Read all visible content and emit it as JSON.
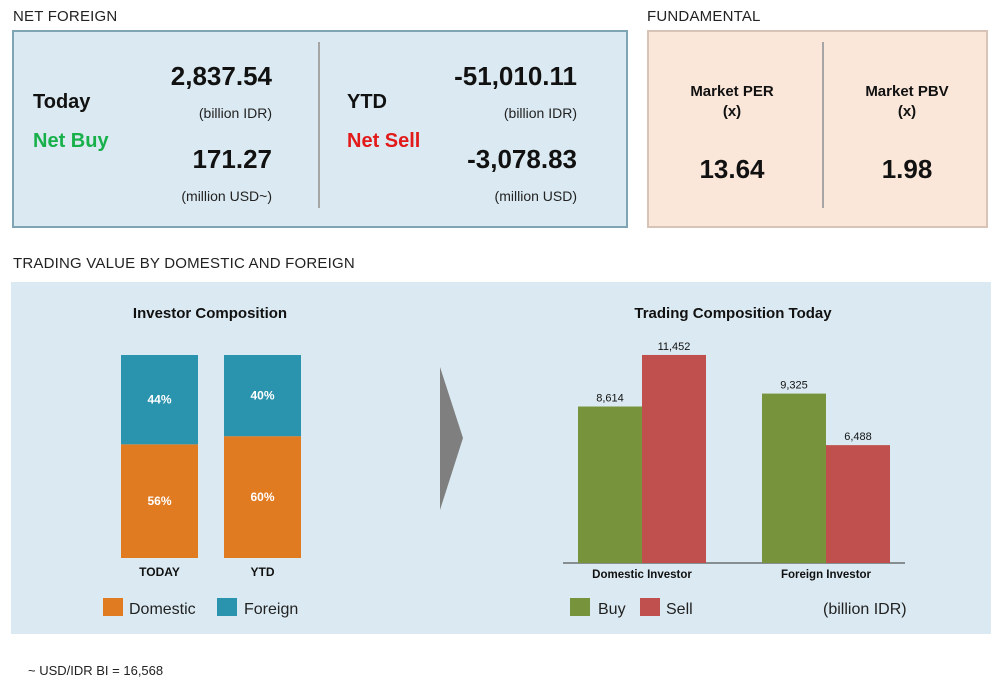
{
  "net_foreign": {
    "section_title": "NET FOREIGN",
    "today": {
      "label": "Today",
      "status": "Net Buy",
      "idr_value": "2,837.54",
      "idr_unit": "(billion IDR)",
      "usd_value": "171.27",
      "usd_unit": "(million USD~)"
    },
    "ytd": {
      "label": "YTD",
      "status": "Net Sell",
      "idr_value": "-51,010.11",
      "idr_unit": "(billion IDR)",
      "usd_value": "-3,078.83",
      "usd_unit": "(million USD)"
    },
    "colors": {
      "net_buy": "#18b04a",
      "net_sell": "#e21a1a",
      "panel_bg": "#dbeaf2"
    }
  },
  "fundamental": {
    "section_title": "FUNDAMENTAL",
    "per": {
      "label": "Market PER",
      "unit": "(x)",
      "value": "13.64"
    },
    "pbv": {
      "label": "Market PBV",
      "unit": "(x)",
      "value": "1.98"
    },
    "colors": {
      "panel_bg": "#fbe7d9"
    }
  },
  "trading_value": {
    "section_title": "TRADING VALUE BY DOMESTIC AND FOREIGN",
    "arrow_icon": "chevron-right-icon",
    "footnote": "~ USD/IDR BI = 16,568"
  },
  "chart_data": [
    {
      "type": "bar",
      "stacked": true,
      "title": "Investor Composition",
      "categories": [
        "TODAY",
        "YTD"
      ],
      "series": [
        {
          "name": "Domestic",
          "values": [
            56,
            60
          ],
          "labels": [
            "56%",
            "60%"
          ],
          "color": "#e07b22"
        },
        {
          "name": "Foreign",
          "values": [
            44,
            40
          ],
          "labels": [
            "44%",
            "40%"
          ],
          "color": "#2a93ad"
        }
      ],
      "ylim": [
        0,
        100
      ],
      "grid": false,
      "legend": "bottom"
    },
    {
      "type": "bar",
      "title": "Trading Composition Today",
      "categories": [
        "Domestic Investor",
        "Foreign Investor"
      ],
      "series": [
        {
          "name": "Buy",
          "values": [
            8614,
            9325
          ],
          "labels": [
            "8,614",
            "9,325"
          ],
          "color": "#77933c"
        },
        {
          "name": "Sell",
          "values": [
            11452,
            6488
          ],
          "labels": [
            "11,452",
            "6,488"
          ],
          "color": "#c0504d"
        }
      ],
      "unit_note": "(billion IDR)",
      "ylim": [
        0,
        12000
      ],
      "grid": false,
      "legend": "bottom"
    }
  ]
}
